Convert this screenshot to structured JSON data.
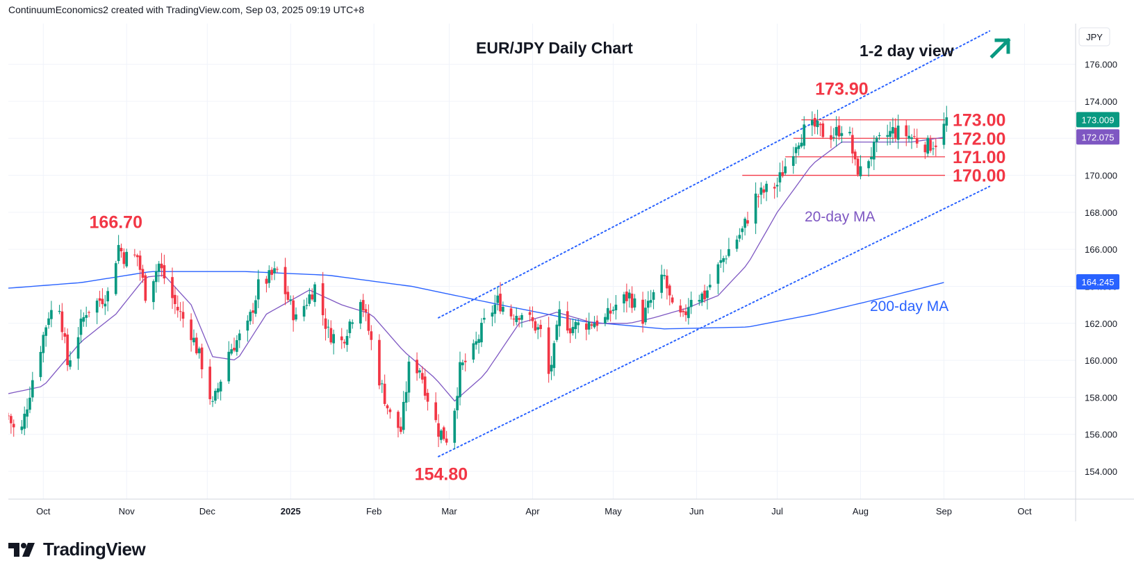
{
  "header": {
    "attribution": "ContinuumEconomics2 created with TradingView.com, Sep 03, 2025 09:19 UTC+8"
  },
  "brand": {
    "name": "TradingView"
  },
  "colors": {
    "up": "#089981",
    "down": "#f23645",
    "ma20": "#7e57c2",
    "ma200": "#2962ff",
    "channel": "#2962ff",
    "level": "#f23645",
    "annotation_red": "#f23645",
    "arrow": "#089981",
    "grid": "#f0f3fa",
    "axis_text": "#131722"
  },
  "chart_data": {
    "type": "candlestick",
    "title": "EUR/JPY Daily Chart",
    "currency": "JPY",
    "y_range": [
      152.5,
      178.2
    ],
    "x_range": [
      "2024-09-18",
      "2025-10-20"
    ],
    "y_ticks": [
      "154.000",
      "156.000",
      "158.000",
      "160.000",
      "162.000",
      "164.000",
      "166.000",
      "168.000",
      "170.000",
      "172.000",
      "174.000",
      "176.000"
    ],
    "x_ticks": [
      {
        "label": "Oct",
        "date": "2024-10-01"
      },
      {
        "label": "Nov",
        "date": "2024-11-01"
      },
      {
        "label": "Dec",
        "date": "2024-12-01"
      },
      {
        "label": "2025",
        "date": "2025-01-01",
        "bold": true
      },
      {
        "label": "Feb",
        "date": "2025-02-01"
      },
      {
        "label": "Mar",
        "date": "2025-03-01"
      },
      {
        "label": "Apr",
        "date": "2025-04-01"
      },
      {
        "label": "May",
        "date": "2025-05-01"
      },
      {
        "label": "Jun",
        "date": "2025-06-01"
      },
      {
        "label": "Jul",
        "date": "2025-07-01"
      },
      {
        "label": "Aug",
        "date": "2025-08-01"
      },
      {
        "label": "Sep",
        "date": "2025-09-01"
      },
      {
        "label": "Oct",
        "date": "2025-10-01"
      }
    ],
    "close_anchors": [
      [
        "2024-09-18",
        157.0
      ],
      [
        "2024-09-22",
        155.6
      ],
      [
        "2024-09-27",
        159.0
      ],
      [
        "2024-10-03",
        162.5
      ],
      [
        "2024-10-07",
        163.0
      ],
      [
        "2024-10-10",
        159.8
      ],
      [
        "2024-10-17",
        162.7
      ],
      [
        "2024-10-25",
        163.6
      ],
      [
        "2024-10-29",
        166.2
      ],
      [
        "2024-10-31",
        165.6
      ],
      [
        "2024-11-05",
        165.6
      ],
      [
        "2024-11-08",
        163.6
      ],
      [
        "2024-11-13",
        165.2
      ],
      [
        "2024-11-19",
        163.0
      ],
      [
        "2024-11-25",
        161.5
      ],
      [
        "2024-11-29",
        159.8
      ],
      [
        "2024-12-03",
        157.5
      ],
      [
        "2024-12-09",
        160.5
      ],
      [
        "2024-12-16",
        161.8
      ],
      [
        "2024-12-20",
        164.0
      ],
      [
        "2024-12-27",
        164.8
      ],
      [
        "2025-01-03",
        162.2
      ],
      [
        "2025-01-10",
        164.0
      ],
      [
        "2025-01-15",
        161.5
      ],
      [
        "2025-01-20",
        161.0
      ],
      [
        "2025-01-27",
        163.5
      ],
      [
        "2025-01-31",
        161.0
      ],
      [
        "2025-02-03",
        159.0
      ],
      [
        "2025-02-07",
        157.0
      ],
      [
        "2025-02-11",
        156.2
      ],
      [
        "2025-02-14",
        159.6
      ],
      [
        "2025-02-18",
        159.6
      ],
      [
        "2025-02-21",
        158.0
      ],
      [
        "2025-02-25",
        156.2
      ],
      [
        "2025-02-28",
        155.8
      ],
      [
        "2025-03-03",
        157.5
      ],
      [
        "2025-03-05",
        159.5
      ],
      [
        "2025-03-10",
        160.5
      ],
      [
        "2025-03-14",
        162.0
      ],
      [
        "2025-03-19",
        163.2
      ],
      [
        "2025-03-24",
        162.5
      ],
      [
        "2025-03-28",
        162.6
      ],
      [
        "2025-04-01",
        162.0
      ],
      [
        "2025-04-04",
        161.5
      ],
      [
        "2025-04-07",
        159.2
      ],
      [
        "2025-04-09",
        160.5
      ],
      [
        "2025-04-11",
        162.5
      ],
      [
        "2025-04-15",
        161.8
      ],
      [
        "2025-04-21",
        162.0
      ],
      [
        "2025-04-28",
        162.2
      ],
      [
        "2025-05-02",
        163.0
      ],
      [
        "2025-05-07",
        163.5
      ],
      [
        "2025-05-12",
        162.3
      ],
      [
        "2025-05-16",
        163.5
      ],
      [
        "2025-05-20",
        164.5
      ],
      [
        "2025-05-23",
        162.7
      ],
      [
        "2025-05-27",
        162.2
      ],
      [
        "2025-05-30",
        163.5
      ],
      [
        "2025-06-04",
        163.5
      ],
      [
        "2025-06-09",
        165.0
      ],
      [
        "2025-06-13",
        166.0
      ],
      [
        "2025-06-18",
        167.0
      ],
      [
        "2025-06-23",
        168.8
      ],
      [
        "2025-06-27",
        169.2
      ],
      [
        "2025-07-01",
        169.5
      ],
      [
        "2025-07-03",
        170.2
      ],
      [
        "2025-07-08",
        171.8
      ],
      [
        "2025-07-11",
        172.4
      ],
      [
        "2025-07-15",
        172.6
      ],
      [
        "2025-07-18",
        172.3
      ],
      [
        "2025-07-22",
        172.2
      ],
      [
        "2025-07-25",
        172.6
      ],
      [
        "2025-07-28",
        172.0
      ],
      [
        "2025-07-30",
        170.5
      ],
      [
        "2025-08-01",
        170.2
      ],
      [
        "2025-08-05",
        171.2
      ],
      [
        "2025-08-08",
        171.8
      ],
      [
        "2025-08-13",
        172.4
      ],
      [
        "2025-08-18",
        172.2
      ],
      [
        "2025-08-21",
        172.0
      ],
      [
        "2025-08-26",
        171.6
      ],
      [
        "2025-08-29",
        171.8
      ],
      [
        "2025-09-01",
        172.6
      ],
      [
        "2025-09-02",
        173.0
      ]
    ],
    "ma20_anchors": [
      [
        "2024-09-18",
        158.2
      ],
      [
        "2024-10-01",
        158.6
      ],
      [
        "2024-10-15",
        161.0
      ],
      [
        "2024-10-28",
        162.5
      ],
      [
        "2024-11-08",
        164.5
      ],
      [
        "2024-11-15",
        164.6
      ],
      [
        "2024-11-25",
        163.0
      ],
      [
        "2024-12-03",
        160.2
      ],
      [
        "2024-12-12",
        160.0
      ],
      [
        "2024-12-23",
        162.5
      ],
      [
        "2025-01-08",
        163.8
      ],
      [
        "2025-01-20",
        163.0
      ],
      [
        "2025-01-31",
        162.5
      ],
      [
        "2025-02-12",
        160.5
      ],
      [
        "2025-02-24",
        159.0
      ],
      [
        "2025-03-03",
        157.8
      ],
      [
        "2025-03-14",
        159.2
      ],
      [
        "2025-03-27",
        162.0
      ],
      [
        "2025-04-10",
        162.6
      ],
      [
        "2025-04-24",
        162.0
      ],
      [
        "2025-05-07",
        162.0
      ],
      [
        "2025-05-16",
        162.3
      ],
      [
        "2025-05-28",
        162.8
      ],
      [
        "2025-06-09",
        163.5
      ],
      [
        "2025-06-20",
        165.2
      ],
      [
        "2025-07-01",
        168.0
      ],
      [
        "2025-07-14",
        170.6
      ],
      [
        "2025-07-25",
        171.8
      ],
      [
        "2025-08-08",
        171.8
      ],
      [
        "2025-08-20",
        171.8
      ],
      [
        "2025-09-02",
        172.075
      ]
    ],
    "ma200_anchors": [
      [
        "2024-09-18",
        163.9
      ],
      [
        "2024-10-15",
        164.2
      ],
      [
        "2024-11-10",
        164.8
      ],
      [
        "2024-12-15",
        164.8
      ],
      [
        "2025-01-15",
        164.6
      ],
      [
        "2025-02-15",
        164.0
      ],
      [
        "2025-03-20",
        163.0
      ],
      [
        "2025-04-20",
        162.1
      ],
      [
        "2025-05-20",
        161.7
      ],
      [
        "2025-06-20",
        161.8
      ],
      [
        "2025-07-15",
        162.5
      ],
      [
        "2025-08-10",
        163.4
      ],
      [
        "2025-09-02",
        164.245
      ]
    ],
    "channel": {
      "upper": {
        "from": [
          "2025-02-25",
          162.3
        ],
        "to": [
          "2025-09-18",
          177.8
        ]
      },
      "lower": {
        "from": [
          "2025-02-25",
          154.8
        ],
        "to": [
          "2025-09-18",
          169.4
        ]
      }
    },
    "levels": [
      {
        "label": "173.00",
        "price": 173.0,
        "from": "2025-07-10"
      },
      {
        "label": "172.00",
        "price": 172.0,
        "from": "2025-07-07"
      },
      {
        "label": "171.00",
        "price": 171.0,
        "from": "2025-07-04"
      },
      {
        "label": "170.00",
        "price": 170.0,
        "from": "2025-06-18"
      }
    ],
    "annotations": [
      {
        "text": "166.70",
        "date": "2024-10-28",
        "price": 166.7
      },
      {
        "text": "154.80",
        "date": "2025-02-26",
        "price": 154.8
      },
      {
        "text": "173.90",
        "date": "2025-07-25",
        "price": 173.9
      }
    ],
    "ma_labels": [
      {
        "text": "20-day MA"
      },
      {
        "text": "200-day MA"
      }
    ],
    "view_label": "1-2 day view",
    "last_price": "173.009",
    "ma20_value": "172.075",
    "ma200_value": "164.245"
  }
}
